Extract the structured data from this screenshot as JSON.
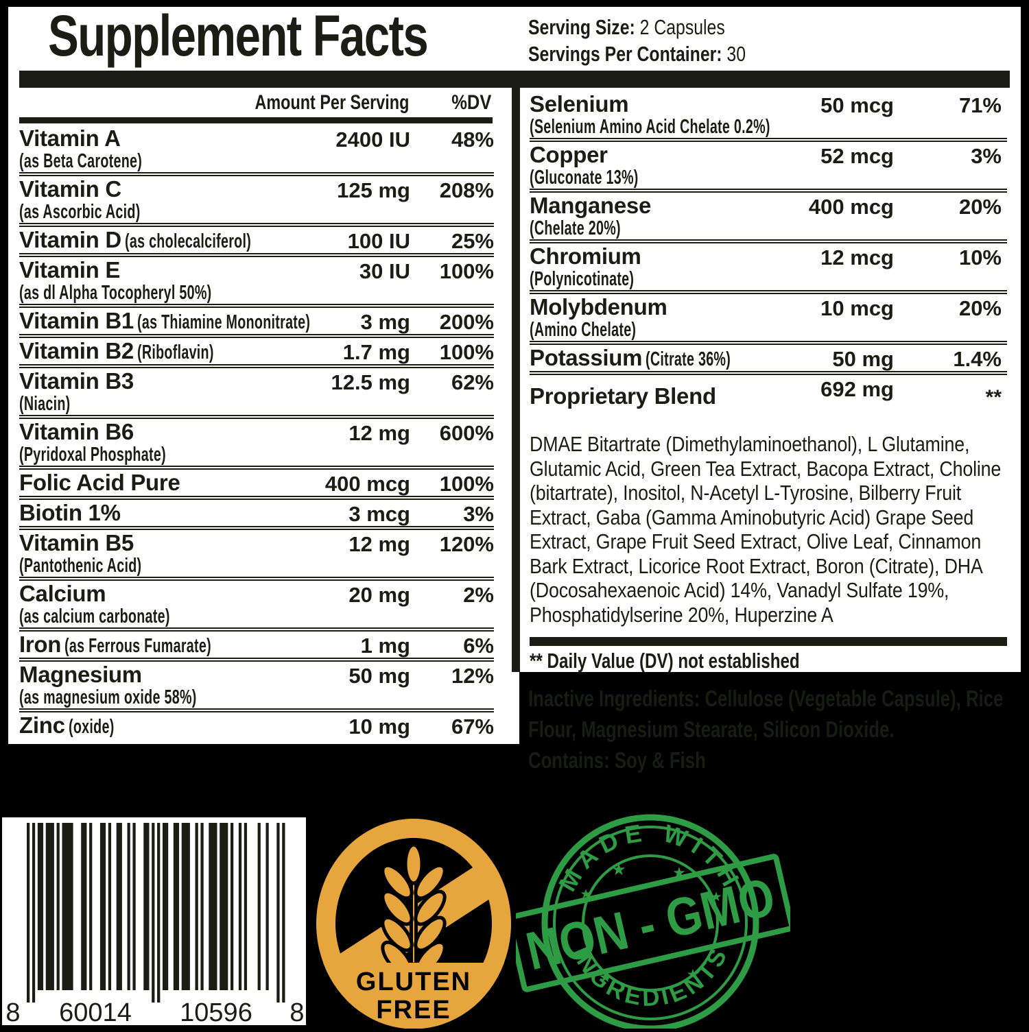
{
  "label": {
    "title": "Supplement Facts",
    "serving_size_label": "Serving Size:",
    "serving_size_value": "2 Capsules",
    "servings_label": "Servings Per Container:",
    "servings_value": "30",
    "col_headers": {
      "amount": "Amount Per Serving",
      "dv": "%DV"
    },
    "left_rows": [
      {
        "name": "Vitamin A",
        "sub": "(as Beta Carotene)",
        "amount": "2400 IU",
        "dv": "48%"
      },
      {
        "name": "Vitamin C",
        "sub": "(as Ascorbic Acid)",
        "amount": "125 mg",
        "dv": "208%"
      },
      {
        "name": "Vitamin D",
        "inline": "(as cholecalciferol)",
        "amount": "100 IU",
        "dv": "25%"
      },
      {
        "name": "Vitamin E",
        "sub": "(as dl Alpha Tocopheryl 50%)",
        "amount": "30 IU",
        "dv": "100%"
      },
      {
        "name": "Vitamin B1",
        "inline": "(as Thiamine Mononitrate)",
        "amount": "3 mg",
        "dv": "200%"
      },
      {
        "name": "Vitamin B2",
        "inline": "(Riboflavin)",
        "amount": "1.7 mg",
        "dv": "100%"
      },
      {
        "name": "Vitamin B3",
        "sub": "(Niacin)",
        "amount": "12.5 mg",
        "dv": "62%"
      },
      {
        "name": "Vitamin B6",
        "sub": "(Pyridoxal Phosphate)",
        "amount": "12 mg",
        "dv": "600%"
      },
      {
        "name": "Folic Acid Pure",
        "amount": "400 mcg",
        "dv": "100%"
      },
      {
        "name": "Biotin 1%",
        "amount": "3 mcg",
        "dv": "3%"
      },
      {
        "name": "Vitamin B5",
        "sub": "(Pantothenic Acid)",
        "amount": "12 mg",
        "dv": "120%"
      },
      {
        "name": "Calcium",
        "sub": "(as calcium carbonate)",
        "amount": "20 mg",
        "dv": "2%"
      },
      {
        "name": "Iron",
        "inline": "(as Ferrous Fumarate)",
        "amount": "1 mg",
        "dv": "6%"
      },
      {
        "name": "Magnesium",
        "sub": "(as magnesium oxide 58%)",
        "amount": "50 mg",
        "dv": "12%"
      },
      {
        "name": "Zinc",
        "inline": "(oxide)",
        "amount": "10 mg",
        "dv": "67%",
        "no_sep": true
      }
    ],
    "right_rows": [
      {
        "name": "Selenium",
        "sub": "(Selenium Amino Acid Chelate 0.2%)",
        "amount": "50 mcg",
        "dv": "71%"
      },
      {
        "name": "Copper",
        "sub": "(Gluconate 13%)",
        "amount": "52 mcg",
        "dv": "3%"
      },
      {
        "name": "Manganese",
        "sub": "(Chelate 20%)",
        "amount": "400 mcg",
        "dv": "20%"
      },
      {
        "name": "Chromium",
        "sub": "(Polynicotinate)",
        "amount": "12 mcg",
        "dv": "10%"
      },
      {
        "name": "Molybdenum",
        "sub": "(Amino Chelate)",
        "amount": "10 mcg",
        "dv": "20%"
      },
      {
        "name": "Potassium",
        "inline": "(Citrate 36%)",
        "amount": "50 mg",
        "dv": "1.4%"
      },
      {
        "name": "Proprietary Blend",
        "amount": "692 mg",
        "dv": "**",
        "no_sep": true,
        "cls": "prop"
      }
    ],
    "proprietary_blend_ingredients": "DMAE Bitartrate (Dimethylaminoethanol), L Glutamine, Glutamic Acid, Green Tea Extract, Bacopa Extract, Choline (bitartrate), Inositol, N-Acetyl L-Tyrosine, Bilberry Fruit Extract, Gaba (Gamma Aminobutyric Acid) Grape Seed Extract, Grape Fruit Seed Extract, Olive Leaf, Cinnamon Bark Extract, Licorice Root Extract, Boron (Citrate), DHA (Docosahexaenoic Acid) 14%, Vanadyl Sulfate 19%, Phosphatidylserine 20%, Huperzine A",
    "dv_note": "** Daily Value (DV) not established",
    "inactive": {
      "label": "Inactive Ingredients:",
      "text": "Cellulose (Vegetable Capsule), Rice Flour, Magnesium Stearate, Silicon Dioxide.",
      "contains": "Contains: Soy & Fish"
    }
  },
  "barcode": {
    "digit_left": "8",
    "digits_group1": "60014",
    "digits_group2": "10596",
    "digit_right": "8"
  },
  "badges": {
    "gluten_free": {
      "line1": "GLUTEN",
      "line2": "FREE",
      "color": "#E7A53E"
    },
    "non_gmo": {
      "top_text": "MADE WITH",
      "banner_text": "NON - GMO",
      "bottom_text": "INGREDIENTS",
      "color": "#2E9C45"
    }
  },
  "colors": {
    "page_bg": "#000000",
    "label_ink": "#1b1d15",
    "faint_ink": "#171d12"
  }
}
